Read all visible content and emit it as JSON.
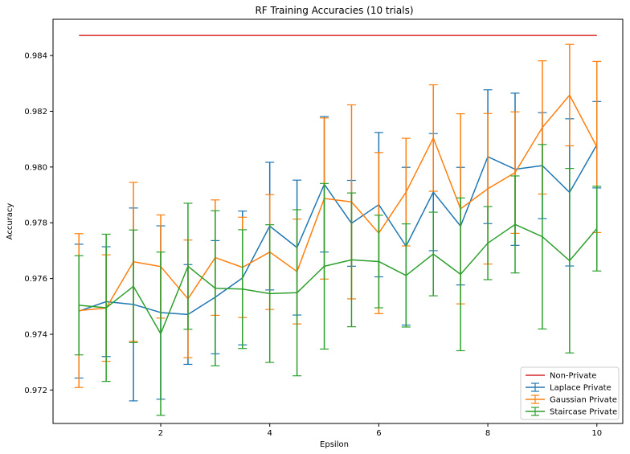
{
  "chart_data": {
    "type": "line",
    "title": "RF Training Accuracies (10 trials)",
    "xlabel": "Epsilon",
    "ylabel": "Accuracy",
    "xlim": [
      0.025,
      10.475
    ],
    "ylim": [
      0.9708,
      0.9853
    ],
    "x_ticks": [
      2,
      4,
      6,
      8,
      10
    ],
    "x_tick_labels": [
      "2",
      "4",
      "6",
      "8",
      "10"
    ],
    "y_ticks": [
      0.972,
      0.974,
      0.976,
      0.978,
      0.98,
      0.982,
      0.984
    ],
    "y_tick_labels": [
      "0.972",
      "0.974",
      "0.976",
      "0.978",
      "0.980",
      "0.982",
      "0.984"
    ],
    "grid": false,
    "legend_position": "lower-right",
    "x": [
      0.5,
      1.0,
      1.5,
      2.0,
      2.5,
      3.0,
      3.5,
      4.0,
      4.5,
      5.0,
      5.5,
      6.0,
      6.5,
      7.0,
      7.5,
      8.0,
      8.5,
      9.0,
      9.5,
      10.0
    ],
    "series": [
      {
        "name": "Non-Private",
        "kind": "line",
        "color": "#d62728",
        "x": [
          0.5,
          10.0
        ],
        "values": [
          0.98472,
          0.98472
        ]
      },
      {
        "name": "Laplace Private",
        "kind": "errorbar",
        "color": "#1f77b4",
        "values": [
          0.97483,
          0.97517,
          0.97507,
          0.97478,
          0.97471,
          0.97533,
          0.97602,
          0.97788,
          0.97711,
          0.97938,
          0.97798,
          0.97865,
          0.97716,
          0.9791,
          0.97788,
          0.98037,
          0.97992,
          0.98005,
          0.97909,
          0.9808
        ],
        "errors": [
          0.0024,
          0.00197,
          0.00346,
          0.00311,
          0.00179,
          0.00203,
          0.0024,
          0.00229,
          0.00242,
          0.00243,
          0.00154,
          0.00259,
          0.00283,
          0.0021,
          0.00211,
          0.0024,
          0.00273,
          0.0019,
          0.00264,
          0.00155
        ]
      },
      {
        "name": "Gaussian Private",
        "kind": "errorbar",
        "color": "#ff7f0e",
        "values": [
          0.97485,
          0.97494,
          0.9766,
          0.97643,
          0.97527,
          0.97675,
          0.9764,
          0.97695,
          0.97625,
          0.97887,
          0.97875,
          0.97763,
          0.9791,
          0.98104,
          0.9785,
          0.97922,
          0.9798,
          0.98142,
          0.98258,
          0.98072
        ],
        "errors": [
          0.00276,
          0.00191,
          0.00285,
          0.00185,
          0.00211,
          0.00207,
          0.0018,
          0.00206,
          0.00188,
          0.00289,
          0.00348,
          0.00289,
          0.00193,
          0.00191,
          0.00341,
          0.0027,
          0.00218,
          0.00239,
          0.00182,
          0.00307
        ]
      },
      {
        "name": "Staircase Private",
        "kind": "errorbar",
        "color": "#2ca02c",
        "values": [
          0.97504,
          0.97495,
          0.97572,
          0.97402,
          0.97644,
          0.97565,
          0.97562,
          0.97546,
          0.97549,
          0.97644,
          0.97667,
          0.97661,
          0.97611,
          0.97688,
          0.97615,
          0.97727,
          0.97794,
          0.9775,
          0.97664,
          0.97779
        ],
        "errors": [
          0.00178,
          0.00264,
          0.00202,
          0.00293,
          0.00226,
          0.00278,
          0.00213,
          0.00247,
          0.00298,
          0.00297,
          0.0024,
          0.00166,
          0.00185,
          0.0015,
          0.00274,
          0.00131,
          0.00174,
          0.00331,
          0.00331,
          0.00152
        ]
      }
    ]
  }
}
